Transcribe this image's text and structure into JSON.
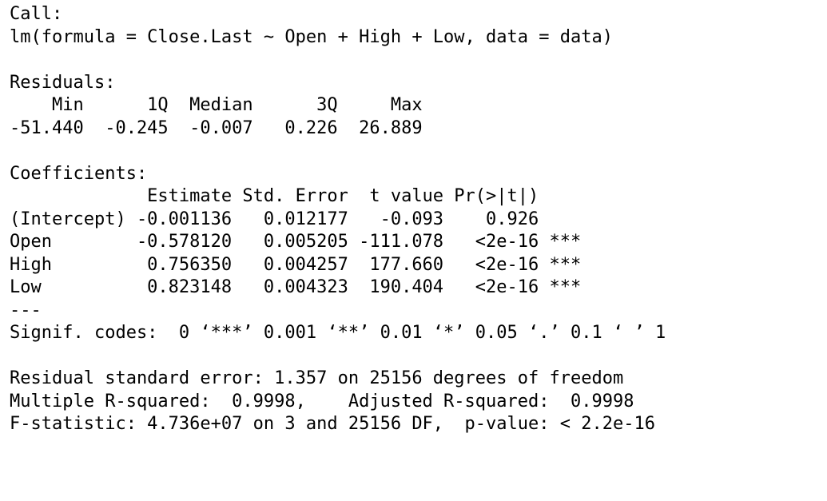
{
  "call": {
    "heading": "Call:",
    "formula": "lm(formula = Close.Last ~ Open + High + Low, data = data)"
  },
  "residuals": {
    "heading": "Residuals:",
    "header_row": "    Min      1Q  Median      3Q     Max ",
    "values_row": "-51.440  -0.245  -0.007   0.226  26.889 "
  },
  "coefficients": {
    "heading": "Coefficients:",
    "header_row": "             Estimate Std. Error  t value Pr(>|t|)    ",
    "rows": [
      "(Intercept) -0.001136   0.012177   -0.093    0.926    ",
      "Open        -0.578120   0.005205 -111.078   <2e-16 ***",
      "High         0.756350   0.004257  177.660   <2e-16 ***",
      "Low          0.823148   0.004323  190.404   <2e-16 ***"
    ],
    "separator": "---",
    "signif_codes": "Signif. codes:  0 ‘***’ 0.001 ‘**’ 0.01 ‘*’ 0.05 ‘.’ 0.1 ‘ ’ 1"
  },
  "summary": {
    "residual_se": "Residual standard error: 1.357 on 25156 degrees of freedom",
    "r_squared": "Multiple R-squared:  0.9998,\tAdjusted R-squared:  0.9998 ",
    "f_statistic": "F-statistic: 4.736e+07 on 3 and 25156 DF,  p-value: < 2.2e-16"
  }
}
